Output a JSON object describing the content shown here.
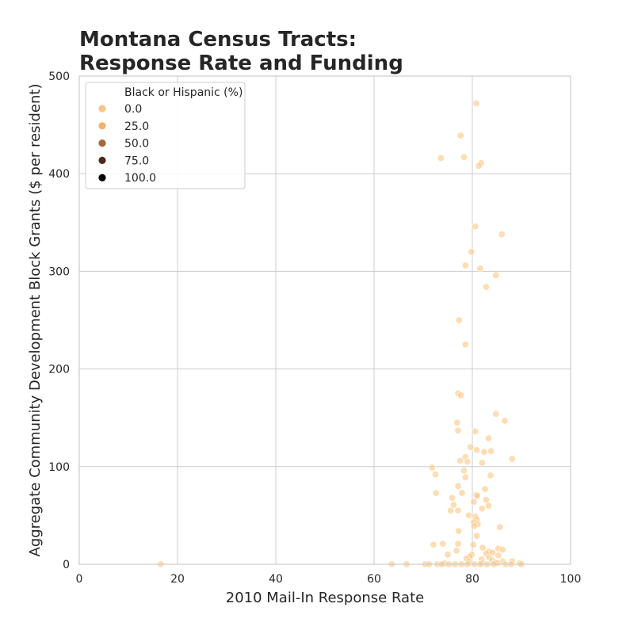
{
  "chart_data": {
    "type": "scatter",
    "title_lines": [
      "Montana Census Tracts:",
      "Response Rate and Funding"
    ],
    "xlabel": "2010 Mail-In Response Rate",
    "ylabel": "Aggregate Community Development Block Grants ($ per resident)",
    "xlim": [
      0,
      100
    ],
    "ylim": [
      0,
      500
    ],
    "xticks": [
      0,
      20,
      40,
      60,
      80,
      100
    ],
    "yticks": [
      0,
      100,
      200,
      300,
      400,
      500
    ],
    "grid": true,
    "legend": {
      "title": "Black or Hispanic (%)",
      "placement": "top-left",
      "entries": [
        {
          "label": "0.0",
          "color": "#f9c58a"
        },
        {
          "label": "25.0",
          "color": "#f0b36e"
        },
        {
          "label": "50.0",
          "color": "#a8683c"
        },
        {
          "label": "75.0",
          "color": "#4a2b18"
        },
        {
          "label": "100.0",
          "color": "#000000"
        }
      ]
    },
    "point_color": "#fbc887",
    "points": [
      [
        80.8,
        472
      ],
      [
        77.6,
        439
      ],
      [
        78.3,
        417
      ],
      [
        73.6,
        416
      ],
      [
        81.8,
        411
      ],
      [
        81.3,
        408
      ],
      [
        80.6,
        346
      ],
      [
        86.0,
        338
      ],
      [
        79.8,
        320
      ],
      [
        78.6,
        306
      ],
      [
        81.6,
        303
      ],
      [
        84.8,
        296
      ],
      [
        82.8,
        284
      ],
      [
        77.3,
        250
      ],
      [
        78.6,
        225
      ],
      [
        77.1,
        175
      ],
      [
        77.7,
        173
      ],
      [
        84.8,
        154
      ],
      [
        86.6,
        147
      ],
      [
        76.9,
        145
      ],
      [
        77.1,
        137
      ],
      [
        80.6,
        136
      ],
      [
        83.3,
        129
      ],
      [
        79.6,
        120
      ],
      [
        80.9,
        117
      ],
      [
        83.8,
        116
      ],
      [
        82.4,
        115
      ],
      [
        78.6,
        110
      ],
      [
        88.1,
        108
      ],
      [
        77.5,
        106
      ],
      [
        79.0,
        105
      ],
      [
        82.0,
        104
      ],
      [
        71.8,
        99
      ],
      [
        78.3,
        96
      ],
      [
        72.5,
        92
      ],
      [
        83.7,
        91
      ],
      [
        78.6,
        89
      ],
      [
        77.1,
        80
      ],
      [
        82.6,
        77
      ],
      [
        77.9,
        73
      ],
      [
        72.6,
        73
      ],
      [
        80.8,
        71
      ],
      [
        81.0,
        70
      ],
      [
        75.9,
        68
      ],
      [
        82.8,
        66
      ],
      [
        80.3,
        64
      ],
      [
        76.2,
        61
      ],
      [
        83.3,
        60
      ],
      [
        82.0,
        57
      ],
      [
        77.1,
        55
      ],
      [
        75.6,
        55
      ],
      [
        79.3,
        50
      ],
      [
        80.6,
        49
      ],
      [
        80.9,
        46
      ],
      [
        80.3,
        43
      ],
      [
        81.1,
        41
      ],
      [
        80.4,
        39
      ],
      [
        85.6,
        38
      ],
      [
        77.2,
        34
      ],
      [
        80.9,
        29
      ],
      [
        72.1,
        20
      ],
      [
        74.0,
        21
      ],
      [
        77.1,
        21
      ],
      [
        80.2,
        20
      ],
      [
        82.1,
        17
      ],
      [
        85.3,
        16
      ],
      [
        86.2,
        15
      ],
      [
        76.8,
        14
      ],
      [
        83.4,
        13
      ],
      [
        84.1,
        12
      ],
      [
        82.8,
        11
      ],
      [
        75.0,
        10
      ],
      [
        79.9,
        10
      ],
      [
        85.3,
        9
      ],
      [
        79.5,
        8
      ],
      [
        83.4,
        7
      ],
      [
        78.8,
        6
      ],
      [
        81.9,
        5
      ],
      [
        84.0,
        4
      ],
      [
        88.1,
        3
      ],
      [
        86.2,
        3
      ],
      [
        79.3,
        3
      ],
      [
        84.7,
        2
      ],
      [
        74.3,
        1
      ],
      [
        85.1,
        1
      ],
      [
        82.0,
        1
      ],
      [
        89.6,
        1
      ],
      [
        70.4,
        0
      ],
      [
        71.2,
        0
      ],
      [
        72.9,
        0
      ],
      [
        73.8,
        0
      ],
      [
        75.2,
        0
      ],
      [
        76.5,
        0
      ],
      [
        77.8,
        0
      ],
      [
        79.0,
        0
      ],
      [
        80.5,
        0
      ],
      [
        81.6,
        0
      ],
      [
        83.0,
        0
      ],
      [
        84.4,
        0
      ],
      [
        86.8,
        0
      ],
      [
        87.9,
        0
      ],
      [
        90.0,
        0
      ],
      [
        63.6,
        0
      ],
      [
        66.6,
        0
      ],
      [
        16.6,
        0
      ]
    ]
  }
}
